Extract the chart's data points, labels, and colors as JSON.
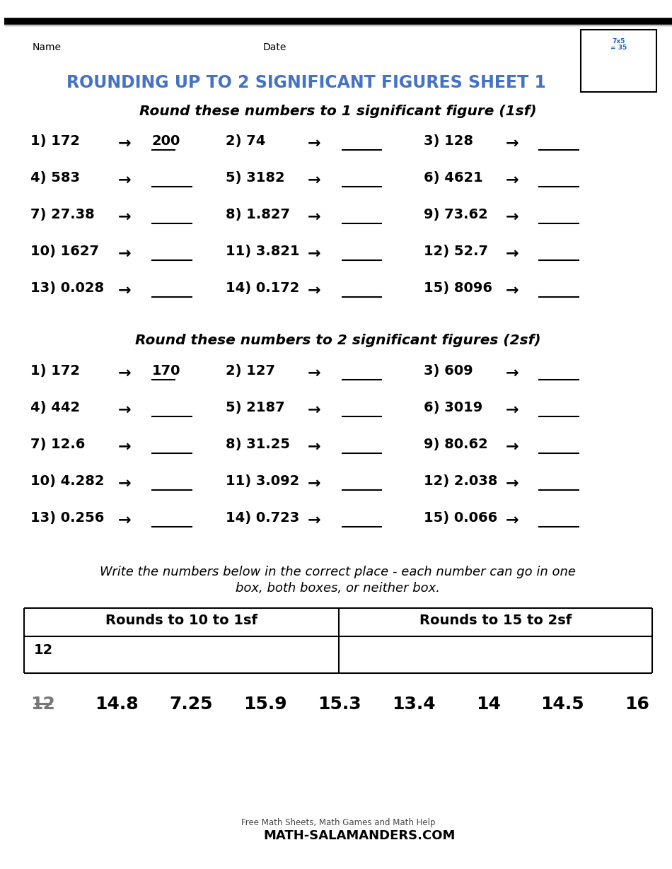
{
  "bg_color": "#FFFFFF",
  "title_color": "#4472C4",
  "title": "ROUNDING UP TO 2 SIGNIFICANT FIGURES SHEET 1",
  "name_label": "Name",
  "date_label": "Date",
  "sec1_header": "Round these numbers to 1 significant figure (1sf)",
  "sec2_header": "Round these numbers to 2 significant figures (2sf)",
  "sec1_rows": [
    [
      "1) 172",
      "200",
      "2) 74",
      "",
      "3) 128",
      ""
    ],
    [
      "4) 583",
      "",
      "5) 3182",
      "",
      "6) 4621",
      ""
    ],
    [
      "7) 27.38",
      "",
      "8) 1.827",
      "",
      "9) 73.62",
      ""
    ],
    [
      "10) 1627",
      "",
      "11) 3.821",
      "",
      "12) 52.7",
      ""
    ],
    [
      "13) 0.028",
      "",
      "14) 0.172",
      "",
      "15) 8096",
      ""
    ]
  ],
  "sec2_rows": [
    [
      "1) 172",
      "170",
      "2) 127",
      "",
      "3) 609",
      ""
    ],
    [
      "4) 442",
      "",
      "5) 2187",
      "",
      "6) 3019",
      ""
    ],
    [
      "7) 12.6",
      "",
      "8) 31.25",
      "",
      "9) 80.62",
      ""
    ],
    [
      "10) 4.282",
      "",
      "11) 3.092",
      "",
      "12) 2.038",
      ""
    ],
    [
      "13) 0.256",
      "",
      "14) 0.723",
      "",
      "15) 0.066",
      ""
    ]
  ],
  "write_line1": "Write the numbers below in the correct place - each number can go in one",
  "write_line2": "box, both boxes, or neither box.",
  "table_col1_header": "Rounds to 10 to 1sf",
  "table_col2_header": "Rounds to 15 to 2sf",
  "table_col1_ans": "12",
  "table_col2_ans": "",
  "bottom_nums": [
    "12",
    "14.8",
    "7.25",
    "15.9",
    "15.3",
    "13.4",
    "14",
    "14.5",
    "16"
  ],
  "bottom_strikethrough": [
    true,
    false,
    false,
    false,
    false,
    false,
    false,
    false,
    false
  ],
  "arrow": "→"
}
